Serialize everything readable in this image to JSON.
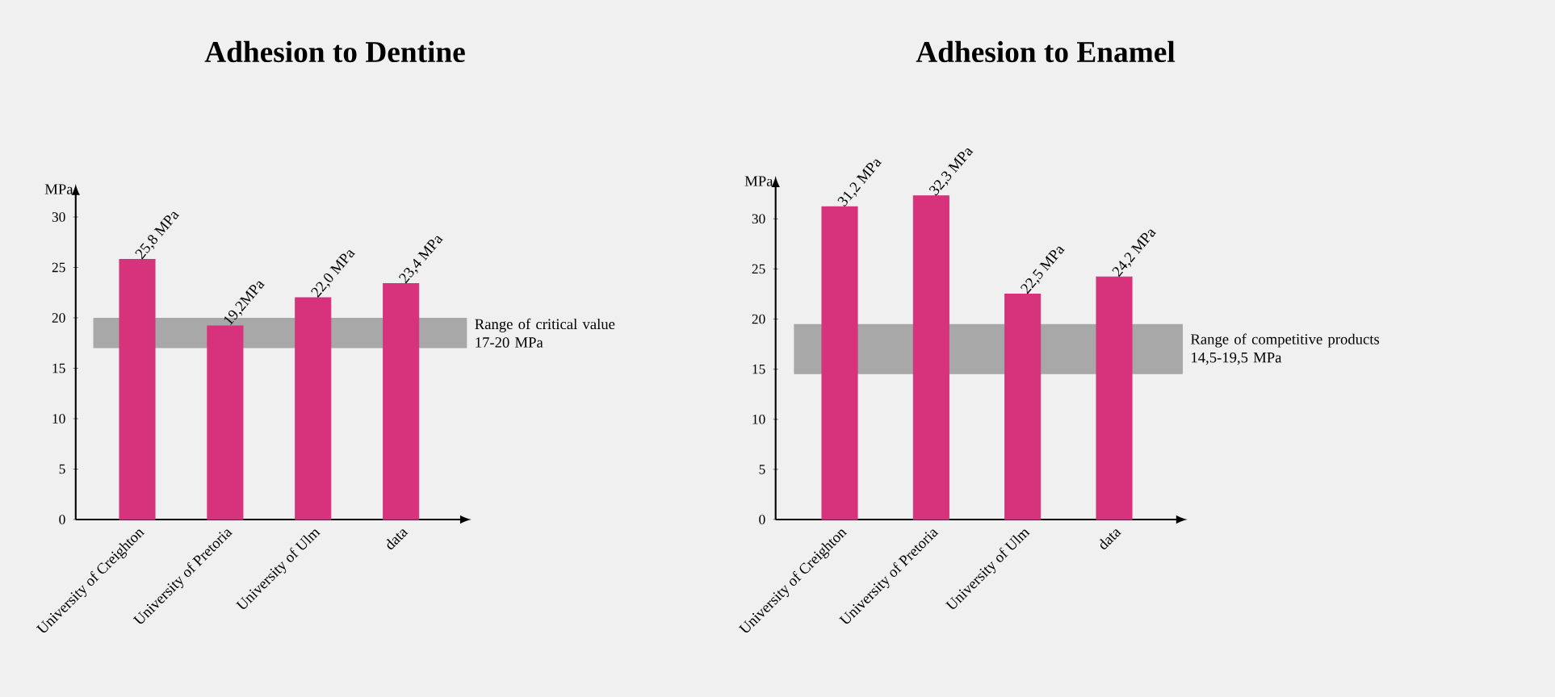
{
  "chart_data": [
    {
      "type": "bar",
      "title": "Adhesion to Dentine",
      "ylabel": "MPa",
      "categories": [
        "University of Creighton",
        "University of Pretoria",
        "University of Ulm",
        "data"
      ],
      "values": [
        25.8,
        19.2,
        22.0,
        23.4
      ],
      "color": "#d6337c",
      "value_labels": [
        "25,8 MPa",
        "19,2MPa",
        "22,0 MPa",
        "23,4 MPa"
      ],
      "ylim": [
        0,
        32
      ],
      "yticks": [
        0,
        5,
        10,
        15,
        20,
        25,
        30
      ],
      "bands": [
        {
          "axis": "y",
          "from": 17,
          "to": 20,
          "label": "Range of critical value 17-20 MPa",
          "color": "#a8a8a8"
        }
      ]
    },
    {
      "type": "bar",
      "title": "Adhesion to Enamel",
      "ylabel": "MPa",
      "categories": [
        "University of Creighton",
        "University of Pretoria",
        "University of Ulm",
        "data"
      ],
      "values": [
        31.2,
        32.3,
        22.5,
        24.2
      ],
      "color": "#d6337c",
      "value_labels": [
        "31,2 MPa",
        "32,3 MPa",
        "22,5 MPa",
        "24,2 MPa"
      ],
      "ylim": [
        0,
        33
      ],
      "yticks": [
        0,
        5,
        10,
        15,
        20,
        25,
        30
      ],
      "bands": [
        {
          "axis": "y",
          "from": 14.5,
          "to": 19.5,
          "label": "Range of competitive products 14,5-19,5 MPa",
          "color": "#a8a8a8"
        }
      ]
    }
  ]
}
